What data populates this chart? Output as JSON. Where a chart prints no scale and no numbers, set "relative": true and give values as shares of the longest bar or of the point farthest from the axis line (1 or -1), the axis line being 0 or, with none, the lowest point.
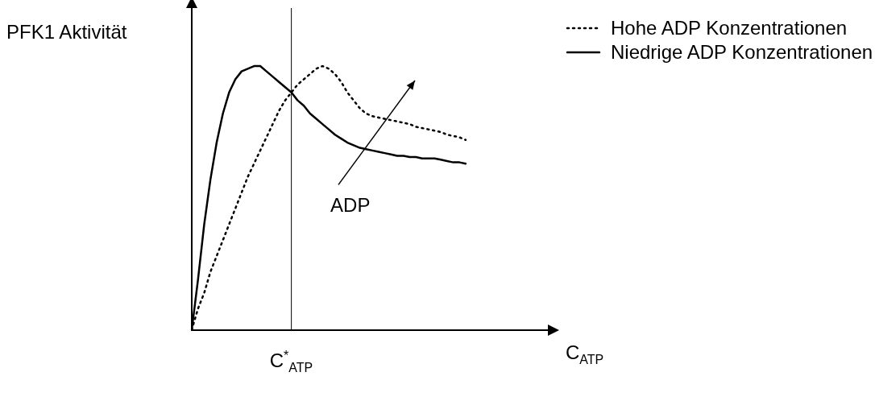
{
  "chart_data": {
    "type": "line",
    "relative": true,
    "ylabel": "PFK1 Aktivität",
    "legend": "top right",
    "marker": "none",
    "categories": [
      null,
      null,
      null,
      null,
      null,
      null,
      null,
      null,
      null,
      null,
      null,
      null,
      null,
      null,
      null,
      null,
      null,
      null,
      null,
      null,
      null,
      null,
      null,
      null,
      null,
      null,
      null,
      null,
      null,
      null,
      null,
      null,
      null,
      null,
      null,
      null,
      null,
      null,
      null,
      null,
      null,
      null,
      null,
      null,
      null
    ],
    "series": [
      {
        "name": "Hohe ADP Konzentrationen",
        "color": "#000000",
        "line_style": "dotted",
        "values": [
          0,
          0.08,
          0.14,
          0.22,
          0.28,
          0.34,
          0.4,
          0.46,
          0.52,
          0.58,
          0.63,
          0.68,
          0.73,
          0.78,
          0.83,
          0.87,
          0.9,
          0.93,
          0.95,
          0.97,
          0.99,
          1.0,
          0.99,
          0.97,
          0.94,
          0.9,
          0.87,
          0.84,
          0.82,
          0.81,
          0.805,
          0.8,
          0.795,
          0.79,
          0.785,
          0.78,
          0.77,
          0.765,
          0.76,
          0.755,
          0.75,
          0.74,
          0.735,
          0.73,
          0.72
        ]
      },
      {
        "name": "Niedrige ADP Konzentrationen",
        "color": "#000000",
        "line_style": "solid",
        "values": [
          0,
          0.19,
          0.4,
          0.57,
          0.71,
          0.82,
          0.9,
          0.95,
          0.98,
          0.99,
          1.0,
          1.0,
          0.98,
          0.96,
          0.94,
          0.92,
          0.9,
          0.87,
          0.85,
          0.82,
          0.8,
          0.78,
          0.76,
          0.74,
          0.725,
          0.71,
          0.7,
          0.69,
          0.685,
          0.68,
          0.675,
          0.67,
          0.665,
          0.66,
          0.66,
          0.655,
          0.655,
          0.65,
          0.65,
          0.65,
          0.645,
          0.64,
          0.635,
          0.635,
          0.63
        ]
      }
    ],
    "annotations": [
      "ADP",
      "C$^{*}$$_{ATP}$",
      "C$_{ATP}$"
    ]
  }
}
